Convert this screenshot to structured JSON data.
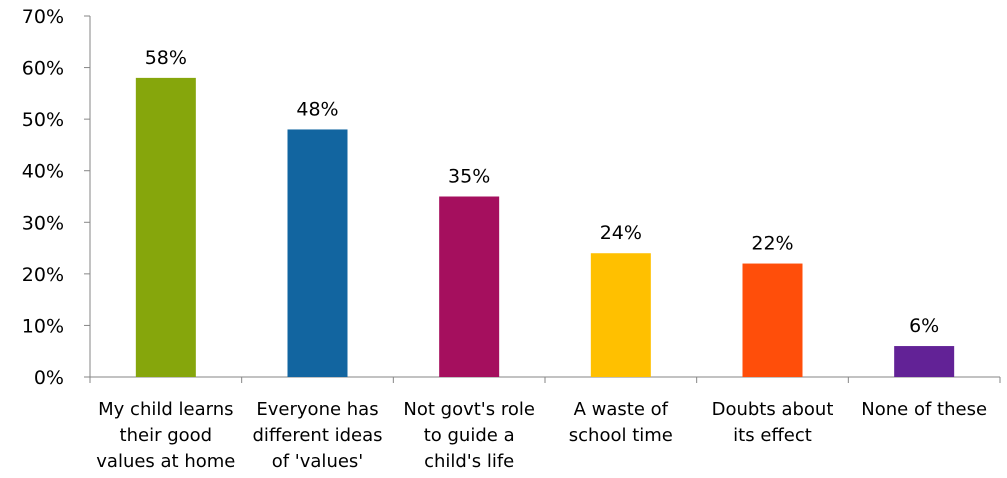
{
  "chart_data": {
    "type": "bar",
    "title": "",
    "xlabel": "",
    "ylabel": "",
    "ylim": [
      0,
      70
    ],
    "ytick_step": 10,
    "ytick_suffix": "%",
    "grid": false,
    "legend": "none",
    "categories": [
      [
        "My child learns",
        "their good",
        "values at home"
      ],
      [
        "Everyone has",
        "different ideas",
        "of 'values'"
      ],
      [
        "Not govt's role",
        "to guide a",
        "child's life"
      ],
      [
        "A waste of",
        "school time"
      ],
      [
        "Doubts about",
        "its effect"
      ],
      [
        "None of these"
      ]
    ],
    "values": [
      58,
      48,
      35,
      24,
      22,
      6
    ],
    "data_labels": [
      "58%",
      "48%",
      "35%",
      "24%",
      "22%",
      "6%"
    ],
    "colors": [
      "#86A60C",
      "#1265A0",
      "#A50F5E",
      "#FFC000",
      "#FF4E0A",
      "#622296"
    ]
  }
}
